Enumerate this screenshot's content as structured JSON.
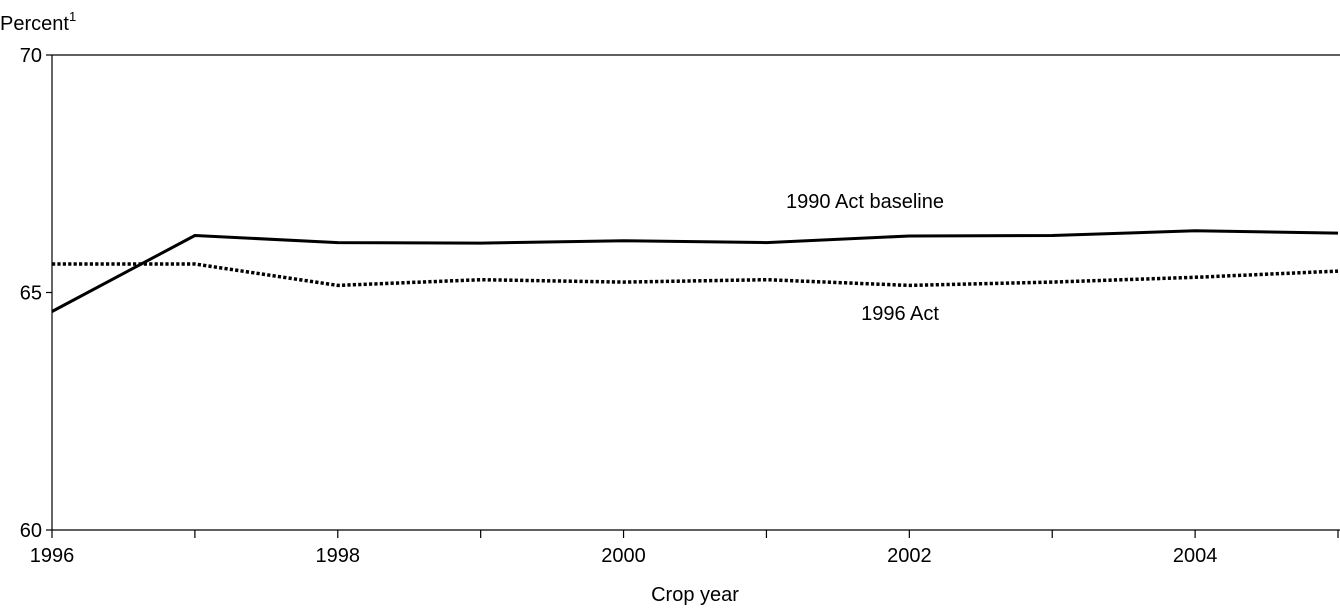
{
  "chart_data": {
    "type": "line",
    "title": "",
    "xlabel": "Crop year",
    "ylabel": "Percent",
    "ylabel_superscript": "1",
    "xlim": [
      1996,
      2005
    ],
    "ylim": [
      60,
      70
    ],
    "y_ticks": [
      60,
      65,
      70
    ],
    "x_tick_labels": [
      1996,
      1998,
      2000,
      2002,
      2004
    ],
    "x": [
      1996,
      1997,
      1998,
      1999,
      2000,
      2001,
      2002,
      2003,
      2004,
      2005
    ],
    "grid": false,
    "legend": "none",
    "series": [
      {
        "name": "1990 Act baseline",
        "style": "solid",
        "color": "#000000",
        "values": [
          64.6,
          66.2,
          66.05,
          66.04,
          66.09,
          66.05,
          66.19,
          66.2,
          66.3,
          66.25
        ]
      },
      {
        "name": "1996 Act",
        "style": "dotted",
        "color": "#000000",
        "values": [
          65.6,
          65.6,
          65.15,
          65.27,
          65.22,
          65.27,
          65.15,
          65.22,
          65.32,
          65.45
        ]
      }
    ]
  }
}
